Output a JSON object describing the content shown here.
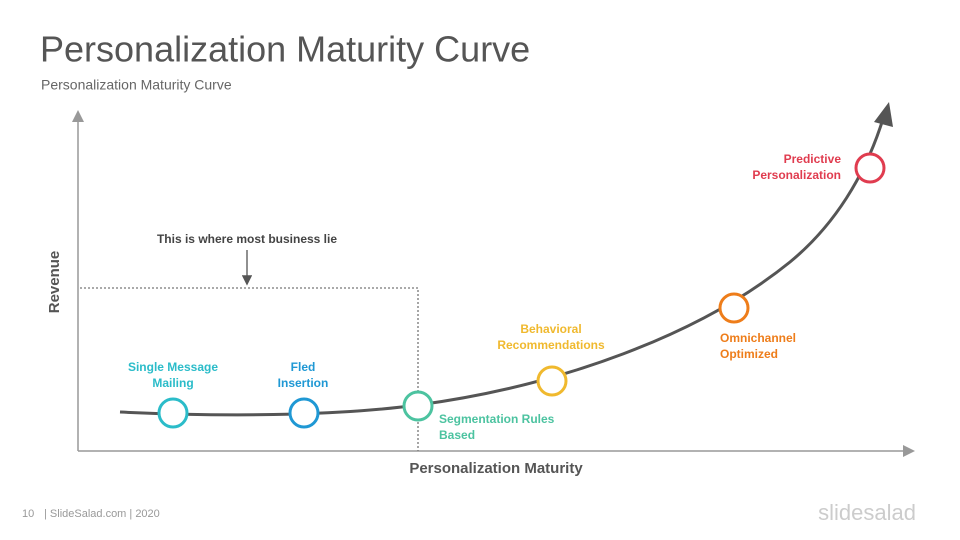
{
  "header": {
    "title": "Personalization Maturity Curve",
    "subtitle": "Personalization Maturity Curve"
  },
  "axes": {
    "y_label": "Revenue",
    "x_label": "Personalization Maturity"
  },
  "annotation": "This is where most business lie",
  "nodes": [
    {
      "lines": [
        "Single Message",
        "Mailing"
      ],
      "color": "#2bbcc9"
    },
    {
      "lines": [
        "Fled",
        "Insertion"
      ],
      "color": "#1f98d4"
    },
    {
      "lines": [
        "Segmentation Rules",
        "Based"
      ],
      "color": "#4cc3a0"
    },
    {
      "lines": [
        "Behavioral",
        "Recommendations"
      ],
      "color": "#f0b92e"
    },
    {
      "lines": [
        "Omnichannel",
        "Optimized"
      ],
      "color": "#ee7d1a"
    },
    {
      "lines": [
        "Predictive",
        "Personalization"
      ],
      "color": "#e03c4f"
    }
  ],
  "footer": {
    "page": "10",
    "source": "| SlideSalad.com | 2020",
    "logo": "slidesalad"
  }
}
